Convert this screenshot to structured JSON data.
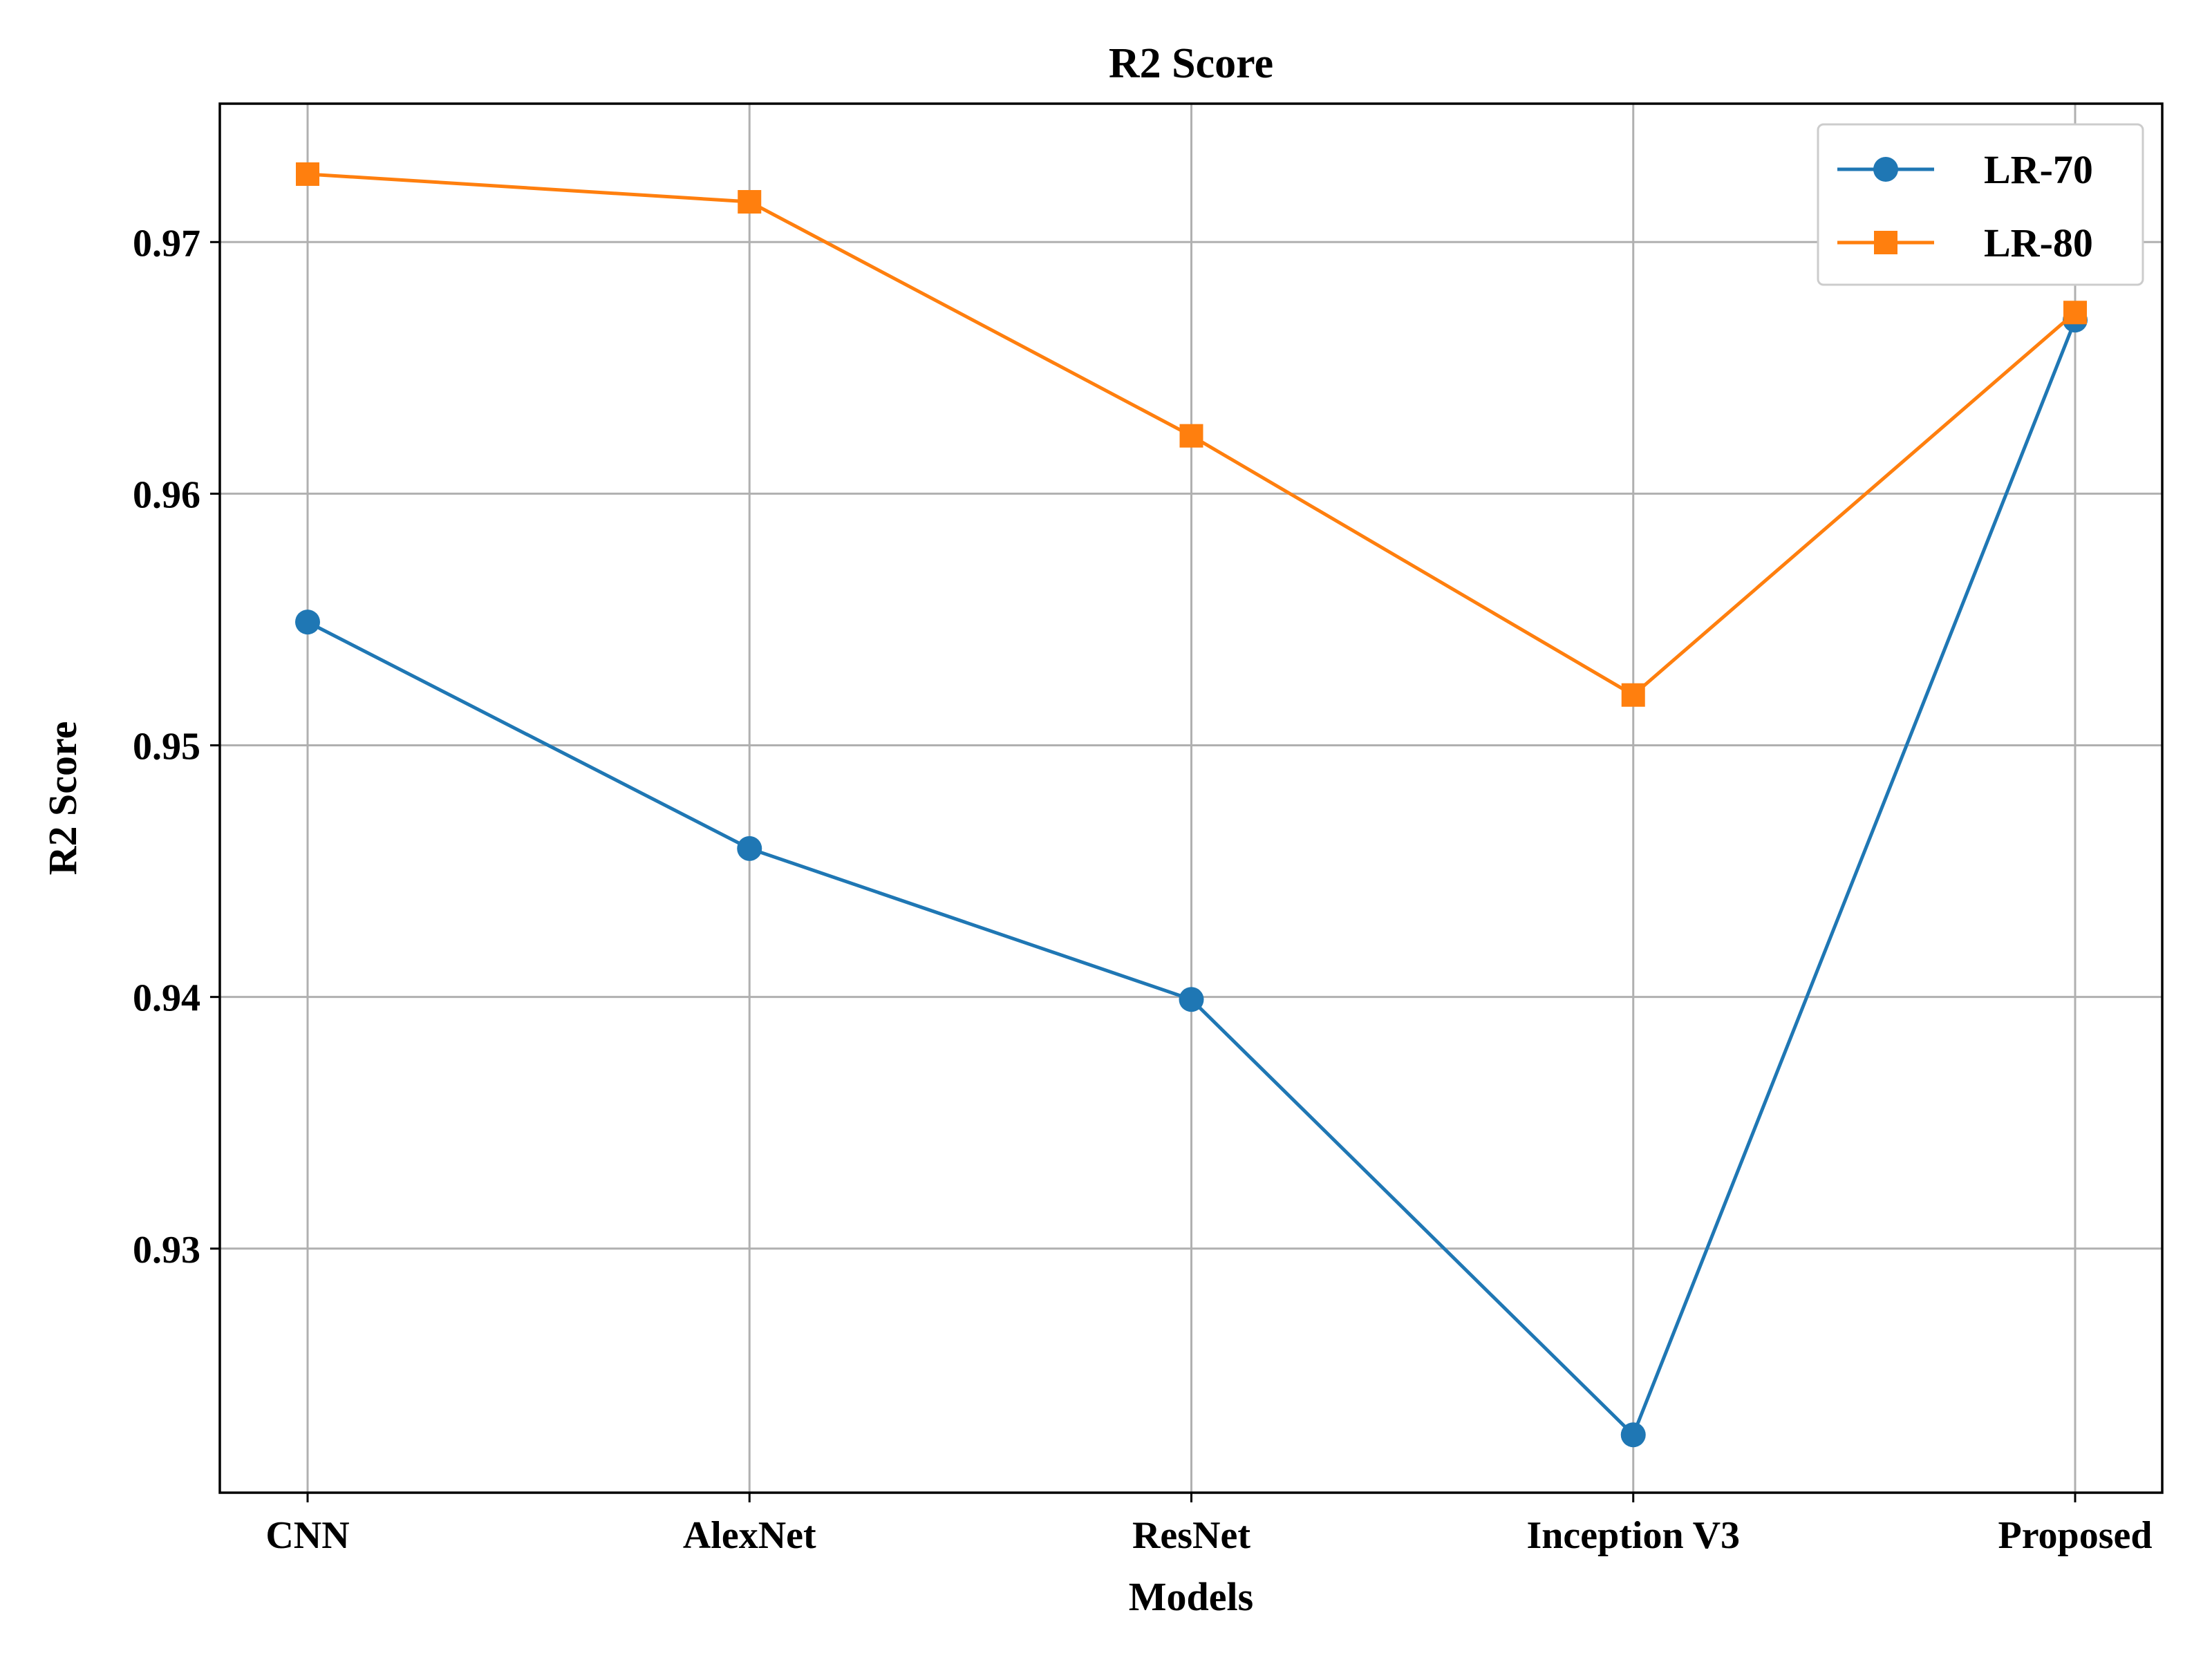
{
  "chart_data": {
    "type": "line",
    "title": "R2 Score",
    "xlabel": "Models",
    "ylabel": "R2 Score",
    "categories": [
      "CNN",
      "AlexNet",
      "ResNet",
      "Inception V3",
      "Proposed"
    ],
    "ylim": [
      0.9203,
      0.9755
    ],
    "yticks": [
      0.93,
      0.94,
      0.95,
      0.96,
      0.97
    ],
    "ytick_labels": [
      "0.93",
      "0.94",
      "0.95",
      "0.96",
      "0.97"
    ],
    "grid": true,
    "legend_position": "top-right",
    "series": [
      {
        "name": "LR-70",
        "color": "#1f77b4",
        "marker": "circle",
        "values": [
          0.9549,
          0.9459,
          0.9399,
          0.9226,
          0.9669
        ]
      },
      {
        "name": "LR-80",
        "color": "#ff7f0e",
        "marker": "square",
        "values": [
          0.9727,
          0.9716,
          0.9623,
          0.952,
          0.9672
        ]
      }
    ]
  }
}
